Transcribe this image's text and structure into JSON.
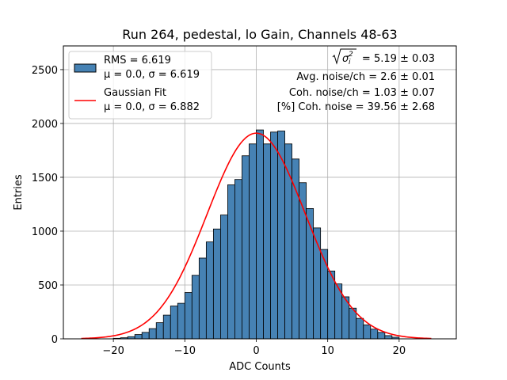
{
  "chart_data": {
    "type": "bar",
    "title": "Run 264, pedestal, lo Gain, Channels 48-63",
    "xlabel": "ADC Counts",
    "ylabel": "Entries",
    "xlim": [
      -27,
      28
    ],
    "ylim": [
      0,
      2720
    ],
    "xticks": [
      -20,
      -10,
      0,
      10,
      20
    ],
    "yticks": [
      0,
      500,
      1000,
      1500,
      2000,
      2500
    ],
    "xtick_labels": [
      "−20",
      "−10",
      "0",
      "10",
      "20"
    ],
    "ytick_labels": [
      "0",
      "500",
      "1000",
      "1500",
      "2000",
      "2500"
    ],
    "grid": true,
    "legend_position": "top-left",
    "histogram": {
      "name_line1": "RMS = 6.619",
      "name_line2": "μ = 0.0, σ = 6.619",
      "bin_width": 1,
      "bin_starts": [
        -20,
        -19,
        -18,
        -17,
        -16,
        -15,
        -14,
        -13,
        -12,
        -11,
        -10,
        -9,
        -8,
        -7,
        -6,
        -5,
        -4,
        -3,
        -2,
        -1,
        0,
        1,
        2,
        3,
        4,
        5,
        6,
        7,
        8,
        9,
        10,
        11,
        12,
        13,
        14,
        15,
        16,
        17,
        18,
        19
      ],
      "values": [
        5,
        10,
        20,
        40,
        60,
        95,
        150,
        220,
        305,
        330,
        430,
        590,
        750,
        900,
        1020,
        1150,
        1430,
        1480,
        1700,
        1810,
        1940,
        1810,
        1920,
        1930,
        1810,
        1670,
        1450,
        1210,
        1030,
        830,
        630,
        510,
        390,
        285,
        190,
        130,
        90,
        60,
        30,
        15
      ],
      "color": "#4682b4"
    },
    "fit": {
      "name_line1": "Gaussian Fit",
      "name_line2": "μ = 0.0, σ = 6.882",
      "mu": 0.0,
      "sigma": 6.882,
      "amplitude": 1910,
      "x_range": [
        -24.5,
        24.5
      ],
      "color": "#ff0000"
    },
    "annotations": [
      {
        "prefix": "",
        "suffix": " = 5.19 ± 0.03"
      },
      {
        "text": "Avg. noise/ch = 2.6 ± 0.01"
      },
      {
        "text": "Coh. noise/ch = 1.03 ± 0.07"
      },
      {
        "text": "[%] Coh. noise = 39.56 ± 2.68"
      }
    ]
  }
}
